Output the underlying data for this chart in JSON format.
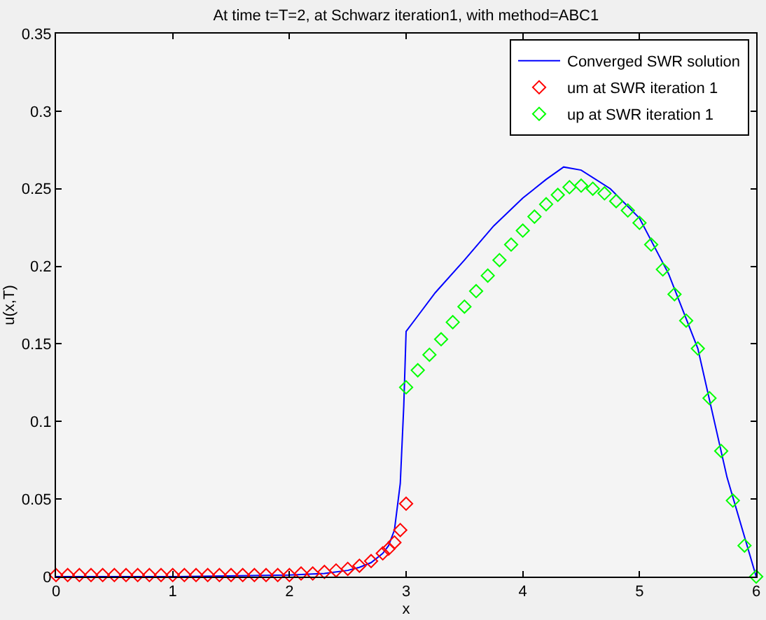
{
  "chart_data": {
    "type": "line",
    "title": "At time t=T=2, at Schwarz iteration1, with method=ABC1",
    "xlabel": "x",
    "ylabel": "u(x,T)",
    "xlim": [
      0,
      6
    ],
    "xticks": [
      0,
      1,
      2,
      3,
      4,
      5,
      6
    ],
    "ylim": [
      0,
      0.35
    ],
    "yticks": [
      0,
      0.05,
      0.1,
      0.15,
      0.2,
      0.25,
      0.3,
      0.35
    ],
    "grid": false,
    "legend": "top right",
    "marker": "diamond",
    "series": [
      {
        "name": "Converged SWR solution",
        "marker": "none",
        "line_style": "solid",
        "color": "#0000ff",
        "x": [
          0,
          1,
          2,
          2.3,
          2.5,
          2.6,
          2.7,
          2.8,
          2.85,
          2.9,
          2.95,
          2.98,
          3.0,
          3.1,
          3.25,
          3.5,
          3.75,
          4.0,
          4.2,
          4.35,
          4.5,
          4.75,
          5.0,
          5.25,
          5.5,
          5.75,
          6.0
        ],
        "values": [
          0,
          0,
          0.001,
          0.002,
          0.004,
          0.006,
          0.009,
          0.015,
          0.02,
          0.03,
          0.06,
          0.11,
          0.158,
          0.168,
          0.183,
          0.204,
          0.226,
          0.244,
          0.256,
          0.264,
          0.262,
          0.25,
          0.231,
          0.195,
          0.147,
          0.064,
          0
        ]
      },
      {
        "name": "um at SWR iteration 1",
        "type": "scatter",
        "color": "#ff0000",
        "x": [
          0,
          0.1,
          0.2,
          0.3,
          0.4,
          0.5,
          0.6,
          0.7,
          0.8,
          0.9,
          1.0,
          1.1,
          1.2,
          1.3,
          1.4,
          1.5,
          1.6,
          1.7,
          1.8,
          1.9,
          2.0,
          2.1,
          2.2,
          2.3,
          2.4,
          2.5,
          2.6,
          2.7,
          2.8,
          2.85,
          2.9,
          2.95,
          3.0
        ],
        "values": [
          0.001,
          0.001,
          0.001,
          0.001,
          0.001,
          0.001,
          0.001,
          0.001,
          0.001,
          0.001,
          0.001,
          0.001,
          0.001,
          0.001,
          0.001,
          0.001,
          0.001,
          0.001,
          0.001,
          0.001,
          0.001,
          0.002,
          0.002,
          0.003,
          0.004,
          0.005,
          0.007,
          0.01,
          0.015,
          0.018,
          0.022,
          0.03,
          0.047
        ]
      },
      {
        "name": "up at SWR iteration 1",
        "type": "scatter",
        "color": "#00ff00",
        "x": [
          3.0,
          3.1,
          3.2,
          3.3,
          3.4,
          3.5,
          3.6,
          3.7,
          3.8,
          3.9,
          4.0,
          4.1,
          4.2,
          4.3,
          4.4,
          4.5,
          4.6,
          4.7,
          4.8,
          4.9,
          5.0,
          5.1,
          5.2,
          5.3,
          5.4,
          5.5,
          5.6,
          5.7,
          5.8,
          5.9,
          6.0
        ],
        "values": [
          0.122,
          0.133,
          0.143,
          0.153,
          0.164,
          0.174,
          0.184,
          0.194,
          0.204,
          0.214,
          0.223,
          0.232,
          0.24,
          0.246,
          0.251,
          0.252,
          0.25,
          0.247,
          0.242,
          0.236,
          0.228,
          0.214,
          0.198,
          0.182,
          0.165,
          0.147,
          0.115,
          0.081,
          0.049,
          0.02,
          0
        ]
      }
    ]
  }
}
